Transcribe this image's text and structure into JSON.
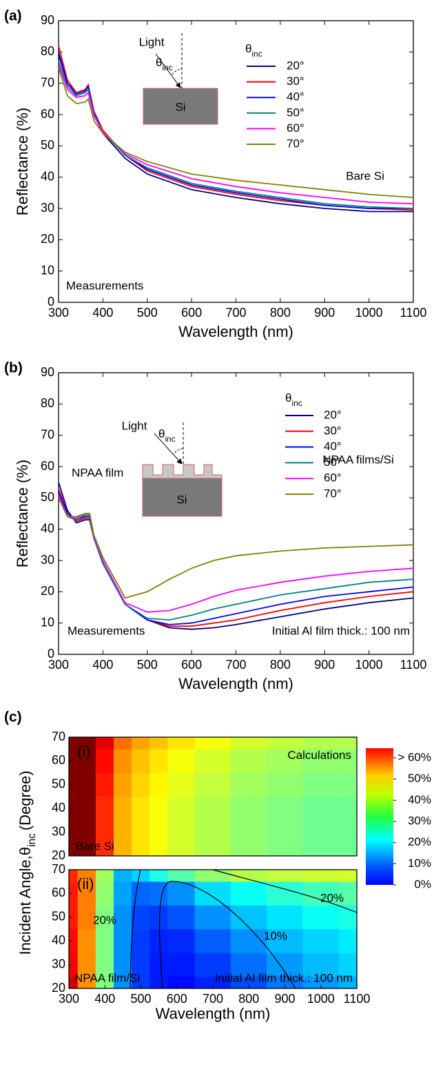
{
  "chart_data": [
    {
      "type": "line",
      "panel_label": "(a)",
      "xlabel": "Wavelength (nm)",
      "ylabel": "Reflectance (%)",
      "legend_title": "θ",
      "legend_title_sub": "inc",
      "inset_angle": "θ",
      "inset_angle_sub": "inc",
      "annotations": [
        "Light",
        "Si",
        "Bare Si",
        "Measurements"
      ],
      "xlim": [
        300,
        1100
      ],
      "ylim": [
        0,
        90
      ],
      "xticks": [
        300,
        400,
        500,
        600,
        700,
        800,
        900,
        1000,
        1100
      ],
      "yticks": [
        0,
        10,
        20,
        30,
        40,
        50,
        60,
        70,
        80,
        90
      ],
      "x": [
        300,
        320,
        340,
        360,
        367,
        380,
        400,
        450,
        500,
        600,
        700,
        800,
        900,
        1000,
        1100
      ],
      "series": [
        {
          "name": "20°",
          "color": "#000080",
          "values": [
            79,
            70,
            67,
            68,
            69,
            60,
            54,
            46,
            41,
            36,
            33.5,
            31.5,
            30,
            29,
            29
          ]
        },
        {
          "name": "30°",
          "color": "#ff0000",
          "values": [
            82,
            71,
            67,
            68,
            69.5,
            61,
            55,
            47,
            42,
            37,
            34.5,
            32.5,
            31,
            30,
            29.5
          ]
        },
        {
          "name": "40°",
          "color": "#0000ff",
          "values": [
            80,
            70,
            66.5,
            67.5,
            69,
            60.5,
            54.5,
            47,
            42.5,
            37.5,
            35,
            33,
            31,
            30,
            30
          ]
        },
        {
          "name": "50°",
          "color": "#008080",
          "values": [
            77,
            69,
            66,
            67,
            68,
            60,
            54.5,
            47,
            43,
            38,
            35.5,
            33.5,
            31.5,
            30.5,
            30
          ]
        },
        {
          "name": "60°",
          "color": "#ff00ff",
          "values": [
            76,
            68,
            65.5,
            66,
            67,
            59.5,
            54.5,
            47.5,
            44,
            39.5,
            37,
            35,
            33.5,
            32,
            31.5
          ]
        },
        {
          "name": "70°",
          "color": "#808000",
          "values": [
            75,
            66,
            63.5,
            64,
            65,
            58,
            54,
            48,
            45,
            41,
            39,
            37.5,
            36,
            34.5,
            33.5
          ]
        }
      ]
    },
    {
      "type": "line",
      "panel_label": "(b)",
      "xlabel": "Wavelength (nm)",
      "ylabel": "Reflectance (%)",
      "legend_title": "θ",
      "legend_title_sub": "inc",
      "inset_angle": "θ",
      "inset_angle_sub": "inc",
      "annotations": [
        "Light",
        "NPAA film",
        "Si",
        "NPAA films/Si",
        "Measurements",
        "Initial Al film thick.: 100 nm"
      ],
      "xlim": [
        300,
        1100
      ],
      "ylim": [
        0,
        90
      ],
      "xticks": [
        300,
        400,
        500,
        600,
        700,
        800,
        900,
        1000,
        1100
      ],
      "yticks": [
        0,
        10,
        20,
        30,
        40,
        50,
        60,
        70,
        80,
        90
      ],
      "x": [
        300,
        320,
        340,
        360,
        370,
        380,
        400,
        450,
        500,
        550,
        600,
        650,
        700,
        800,
        900,
        1000,
        1100
      ],
      "series": [
        {
          "name": "20°",
          "color": "#000080",
          "values": [
            55,
            46,
            42,
            43,
            43,
            37,
            29,
            16,
            11,
            8.5,
            8,
            8.5,
            9.5,
            12,
            14.5,
            16.5,
            18
          ]
        },
        {
          "name": "30°",
          "color": "#ff0000",
          "values": [
            53,
            45,
            42.5,
            43.5,
            43.5,
            37,
            29,
            16,
            11,
            9,
            9,
            10,
            11,
            14,
            16.5,
            18.5,
            20
          ]
        },
        {
          "name": "40°",
          "color": "#0000ff",
          "values": [
            52,
            45,
            43,
            44,
            44,
            37,
            29,
            16,
            11,
            9.5,
            10,
            11.5,
            13,
            16,
            18.5,
            20,
            21.5
          ]
        },
        {
          "name": "50°",
          "color": "#008080",
          "values": [
            51,
            44,
            43,
            44.5,
            44.5,
            37,
            29,
            16,
            11.5,
            11,
            12.5,
            14.5,
            16,
            19,
            21,
            23,
            24
          ]
        },
        {
          "name": "60°",
          "color": "#ff00ff",
          "values": [
            51,
            44,
            43.5,
            45,
            45,
            37.5,
            30,
            16.5,
            13.5,
            14,
            16,
            18.5,
            20.5,
            23,
            25,
            26.5,
            27.5
          ]
        },
        {
          "name": "70°",
          "color": "#808000",
          "values": [
            50,
            44,
            44,
            45,
            45,
            38,
            31,
            18,
            20,
            24,
            27.5,
            30,
            31.5,
            33,
            34,
            34.5,
            35
          ]
        }
      ]
    },
    {
      "type": "heatmap",
      "panel_label": "(c)",
      "xlabel": "Wavelength (nm)",
      "ylabel": "Incident Angle,",
      "ylabel_symbol": "θ",
      "ylabel_sub": "inc",
      "ylabel_end": "(Degree)",
      "xlim": [
        300,
        1100
      ],
      "ylim": [
        20,
        70
      ],
      "xticks": [
        300,
        400,
        500,
        600,
        700,
        800,
        900,
        1000,
        1100
      ],
      "yticks": [
        20,
        30,
        40,
        50,
        60,
        70
      ],
      "x": [
        300,
        350,
        400,
        450,
        500,
        550,
        600,
        700,
        800,
        900,
        1000,
        1100
      ],
      "y": [
        20,
        30,
        40,
        50,
        60,
        70
      ],
      "colorbar": {
        "lim": [
          0,
          60
        ],
        "ticks": [
          {
            "value": 0,
            "label": "0%"
          },
          {
            "value": 10,
            "label": "10%"
          },
          {
            "value": 20,
            "label": "20%"
          },
          {
            "value": 30,
            "label": "30%"
          },
          {
            "value": 40,
            "label": "40%"
          },
          {
            "value": 50,
            "label": "50%"
          },
          {
            "value": 60,
            "label": "> 60%"
          }
        ]
      },
      "panels": [
        {
          "label": "(i)",
          "annotations": [
            "Calculations",
            "Bare Si"
          ],
          "z": [
            [
              62,
              66,
              50,
              42,
              39,
              37,
              35,
              33,
              31,
              30,
              29,
              29
            ],
            [
              62,
              66,
              50,
              42,
              39,
              37,
              35,
              33,
              31,
              30,
              29,
              29
            ],
            [
              62,
              66,
              50,
              42,
              39,
              37,
              35,
              33,
              31,
              30,
              29,
              29
            ],
            [
              63,
              67,
              51,
              43,
              40,
              38,
              36,
              34,
              32,
              31,
              30,
              30
            ],
            [
              64,
              68,
              52,
              44,
              41,
              39,
              37,
              35,
              33,
              32,
              31,
              31
            ],
            [
              66,
              70,
              54,
              46,
              43,
              41,
              39,
              37,
              35,
              34,
              33,
              33
            ]
          ]
        },
        {
          "label": "(ii)",
          "annotations": [
            "NPAA film/Si",
            "Initial Al film thick.: 100 nm",
            "20%",
            "10%",
            "20%"
          ],
          "z": [
            [
              55,
              44,
              30,
              16,
              11,
              9,
              8,
              9.5,
              12,
              14.5,
              16.5,
              18
            ],
            [
              53,
              44,
              30,
              16,
              11,
              9,
              9,
              11,
              14,
              16.5,
              18.5,
              20
            ],
            [
              52,
              44,
              30,
              16,
              11,
              9.5,
              10,
              13,
              16,
              18.5,
              20,
              21.5
            ],
            [
              51,
              45,
              30,
              16,
              11.5,
              11,
              12.5,
              16,
              19,
              21,
              23,
              24
            ],
            [
              51,
              45,
              31,
              17,
              13.5,
              14,
              16,
              20.5,
              23,
              25,
              26.5,
              27.5
            ],
            [
              50,
              45,
              32,
              18,
              20,
              24,
              27.5,
              31,
              33,
              34,
              34.5,
              35
            ]
          ]
        }
      ]
    }
  ]
}
